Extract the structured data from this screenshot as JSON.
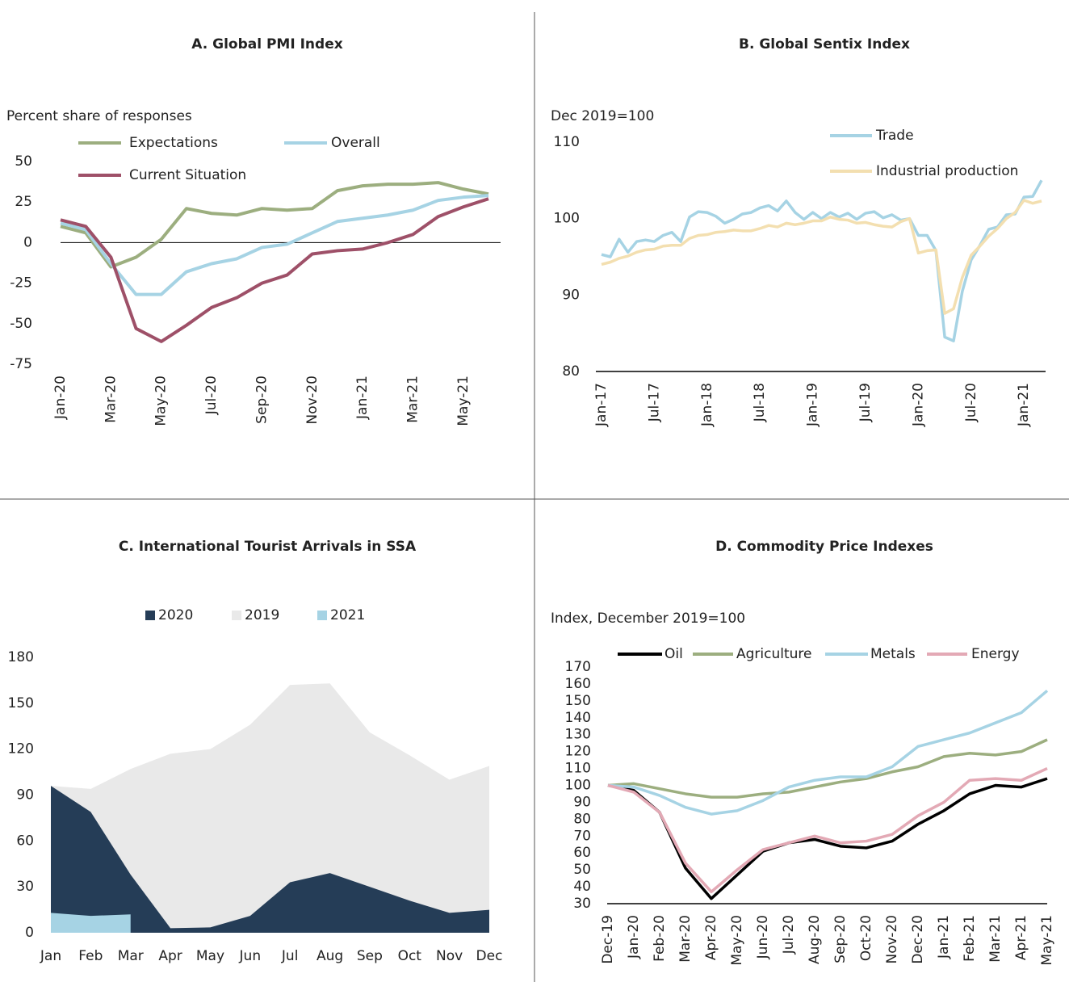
{
  "chart_data": [
    {
      "type": "line",
      "title": "A. Global PMI Index",
      "y_label": "Percent share of responses",
      "categories": [
        "Jan-20",
        null,
        "Mar-20",
        null,
        "May-20",
        null,
        "Jul-20",
        null,
        "Sep-20",
        null,
        "Nov-20",
        null,
        "Jan-21",
        null,
        "Mar-21",
        null,
        "May-21",
        null
      ],
      "series": [
        {
          "name": "Expectations",
          "color": "#9cae7f",
          "values": [
            10,
            6,
            -15,
            -9,
            2,
            21,
            18,
            17,
            21,
            20,
            21,
            32,
            35,
            36,
            36,
            37,
            33,
            30
          ]
        },
        {
          "name": "Overall",
          "color": "#a6d3e4",
          "values": [
            12,
            8,
            -13,
            -32,
            -32,
            -18,
            -13,
            -10,
            -3,
            -1,
            6,
            13,
            15,
            17,
            20,
            26,
            28,
            29
          ]
        },
        {
          "name": "Current Situation",
          "color": "#9e5068",
          "values": [
            14,
            10,
            -9,
            -53,
            -61,
            -51,
            -40,
            -34,
            -25,
            -20,
            -7,
            -5,
            -4,
            0,
            5,
            16,
            22,
            27
          ]
        }
      ],
      "ylim": [
        -75,
        50
      ],
      "yticks": [
        -75,
        -50,
        -25,
        0,
        25,
        50
      ]
    },
    {
      "type": "line",
      "title": "B. Global Sentix Index",
      "y_label": "Dec 2019=100",
      "categories": [
        "Jan-17",
        null,
        null,
        null,
        null,
        null,
        "Jul-17",
        null,
        null,
        null,
        null,
        null,
        "Jan-18",
        null,
        null,
        null,
        null,
        null,
        "Jul-18",
        null,
        null,
        null,
        null,
        null,
        "Jan-19",
        null,
        null,
        null,
        null,
        null,
        "Jul-19",
        null,
        null,
        null,
        null,
        null,
        "Jan-20",
        null,
        null,
        null,
        null,
        null,
        "Jul-20",
        null,
        null,
        null,
        null,
        null,
        "Jan-21",
        null,
        null
      ],
      "series": [
        {
          "name": "Trade",
          "color": "#a6d3e4",
          "values": [
            95.3,
            95.0,
            97.3,
            95.6,
            97.0,
            97.2,
            97.0,
            97.8,
            98.2,
            97.0,
            100.2,
            100.9,
            100.8,
            100.3,
            99.4,
            99.9,
            100.6,
            100.8,
            101.4,
            101.7,
            101.0,
            102.3,
            100.8,
            99.9,
            100.8,
            100.0,
            100.8,
            100.2,
            100.7,
            99.9,
            100.7,
            100.9,
            100.1,
            100.5,
            99.8,
            100,
            97.8,
            97.8,
            95.8,
            84.5,
            84.0,
            90.5,
            94.6,
            96.5,
            98.6,
            98.9,
            100.5,
            100.6,
            102.8,
            102.9,
            105.0
          ]
        },
        {
          "name": "Industrial production",
          "color": "#f3dfb0",
          "values": [
            94.0,
            94.3,
            94.8,
            95.1,
            95.6,
            95.9,
            96.0,
            96.4,
            96.5,
            96.5,
            97.4,
            97.8,
            97.9,
            98.2,
            98.3,
            98.5,
            98.4,
            98.4,
            98.7,
            99.1,
            98.9,
            99.4,
            99.2,
            99.4,
            99.7,
            99.7,
            100.2,
            99.9,
            99.8,
            99.4,
            99.5,
            99.2,
            99.0,
            98.9,
            99.6,
            100,
            95.5,
            95.8,
            95.9,
            87.6,
            88.2,
            92.3,
            95.2,
            96.4,
            97.7,
            98.7,
            100.0,
            100.8,
            102.4,
            102.0,
            102.3
          ]
        }
      ],
      "ylim": [
        80,
        110
      ],
      "yticks": [
        80,
        90,
        100,
        110
      ]
    },
    {
      "type": "area",
      "title": "C. International Tourist Arrivals in SSA",
      "categories": [
        "Jan",
        "Feb",
        "Mar",
        "Apr",
        "May",
        "Jun",
        "Jul",
        "Aug",
        "Sep",
        "Oct",
        "Nov",
        "Dec"
      ],
      "series": [
        {
          "name": "2020",
          "color": "#253d57",
          "values": [
            96,
            79,
            38,
            3,
            3.5,
            11,
            33,
            39,
            30,
            21,
            13,
            15
          ]
        },
        {
          "name": "2019",
          "color": "#e9e9e9",
          "values": [
            96,
            94,
            107,
            117,
            120,
            136,
            162,
            163,
            131,
            116,
            100,
            109
          ]
        },
        {
          "name": "2021",
          "color": "#a6d3e4",
          "values": [
            13,
            11,
            12,
            null,
            null,
            null,
            null,
            null,
            null,
            null,
            null,
            null
          ]
        }
      ],
      "ylim": [
        0,
        180
      ],
      "yticks": [
        0,
        30,
        60,
        90,
        120,
        150,
        180
      ]
    },
    {
      "type": "line",
      "title": "D. Commodity Price Indexes",
      "y_label": "Index, December 2019=100",
      "categories": [
        "Dec-19",
        "Jan-20",
        "Feb-20",
        "Mar-20",
        "Apr-20",
        "May-20",
        "Jun-20",
        "Jul-20",
        "Aug-20",
        "Sep-20",
        "Oct-20",
        "Nov-20",
        "Dec-20",
        "Jan-21",
        "Feb-21",
        "Mar-21",
        "Apr-21",
        "May-21"
      ],
      "series": [
        {
          "name": "Oil",
          "color": "#000000",
          "values": [
            100,
            97,
            84,
            51,
            33,
            47,
            61,
            66,
            68,
            64,
            63,
            67,
            77,
            85,
            95,
            100,
            99,
            104
          ]
        },
        {
          "name": "Agriculture",
          "color": "#9cae7f",
          "values": [
            100,
            101,
            98,
            95,
            93,
            93,
            95,
            96,
            99,
            102,
            104,
            108,
            111,
            117,
            119,
            118,
            120,
            127
          ]
        },
        {
          "name": "Metals",
          "color": "#a6d3e4",
          "values": [
            100,
            99,
            94,
            87,
            83,
            85,
            91,
            99,
            103,
            105,
            105,
            111,
            123,
            127,
            131,
            137,
            143,
            156
          ]
        },
        {
          "name": "Energy",
          "color": "#e3a9b5",
          "values": [
            100,
            96,
            84,
            54,
            37,
            50,
            62,
            66,
            70,
            66,
            67,
            71,
            82,
            90,
            103,
            104,
            103,
            110
          ]
        }
      ],
      "ylim": [
        30,
        170
      ],
      "yticks": [
        30,
        40,
        50,
        60,
        70,
        80,
        90,
        100,
        110,
        120,
        130,
        140,
        150,
        160,
        170
      ]
    }
  ]
}
